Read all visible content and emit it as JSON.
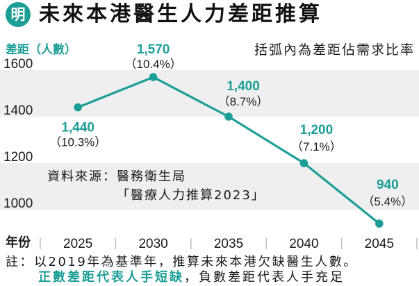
{
  "brand": {
    "logo_text": "明"
  },
  "colors": {
    "accent": "#1c9e96",
    "band": "#efefef",
    "text": "#1a1a1a",
    "separator": "#bdbdbd"
  },
  "chart_data": {
    "type": "line",
    "title": "未來本港醫生人力差距推算",
    "ylabel": "差距（人數）",
    "xlabel": "年份",
    "annotation": "括弧內為差距佔需求比率",
    "categories": [
      "2025",
      "2030",
      "2035",
      "2040",
      "2045"
    ],
    "series": [
      {
        "values": [
          1440,
          1570,
          1400,
          1200,
          940
        ],
        "value_labels": [
          "1,440",
          "1,570",
          "1,400",
          "1,200",
          "940"
        ],
        "ratio_labels": [
          "（10.3%）",
          "（10.4%）",
          "（8.7%）",
          "（7.1%）",
          "（5.4%）"
        ]
      }
    ],
    "yticks": [
      1600,
      1400,
      1200,
      1000
    ],
    "ylim": [
      900,
      1700
    ],
    "grid": true
  },
  "source": {
    "line1": "資料來源：醫務衛生局",
    "line2": "「醫療人力推算2023」"
  },
  "footnote": {
    "line1": "註：以2019年為基準年，推算未來本港欠缺醫生人數。",
    "positive": "正數差距代表人手短缺",
    "negative": "，負數差距代表人手充足"
  }
}
